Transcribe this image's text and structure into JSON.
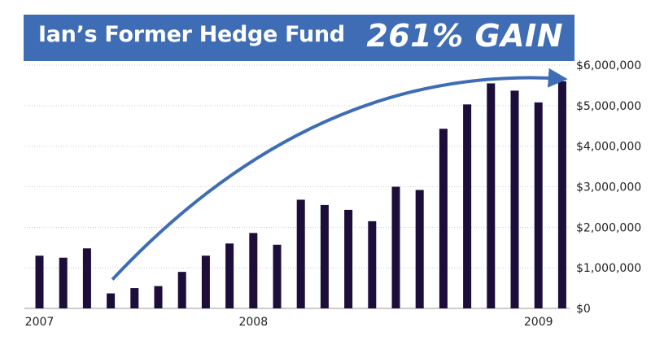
{
  "header": {
    "title": "Ian’s Former Hedge Fund",
    "gain_label": "261% GAIN"
  },
  "colors": {
    "banner": "#3e6db5",
    "bars": "#1c0d3a",
    "arrow": "#3e6db5",
    "grid": "#cccccc"
  },
  "chart_data": {
    "type": "bar",
    "title": "",
    "xlabel": "",
    "ylabel": "",
    "ylim": [
      0,
      6000000
    ],
    "y_ticks": [
      {
        "value": 0,
        "label": "$0"
      },
      {
        "value": 1000000,
        "label": "$1,000,000"
      },
      {
        "value": 2000000,
        "label": "$2,000,000"
      },
      {
        "value": 3000000,
        "label": "$3,000,000"
      },
      {
        "value": 4000000,
        "label": "$4,000,000"
      },
      {
        "value": 5000000,
        "label": "$5,000,000"
      },
      {
        "value": 6000000,
        "label": "$6,000,000"
      }
    ],
    "x_tick_labels": [
      {
        "label": "2007",
        "bar_index": 0
      },
      {
        "label": "2008",
        "bar_index": 9
      },
      {
        "label": "2009",
        "bar_index": 21
      }
    ],
    "values": [
      1300000,
      1250000,
      1480000,
      370000,
      500000,
      550000,
      900000,
      1300000,
      1600000,
      1860000,
      1570000,
      2680000,
      2550000,
      2430000,
      2150000,
      3000000,
      2920000,
      4430000,
      5030000,
      5550000,
      5370000,
      5080000,
      5600000
    ],
    "grid": true,
    "y_axis_side": "right",
    "annotation": "curved arrow rising from the low bar to the top-right"
  }
}
